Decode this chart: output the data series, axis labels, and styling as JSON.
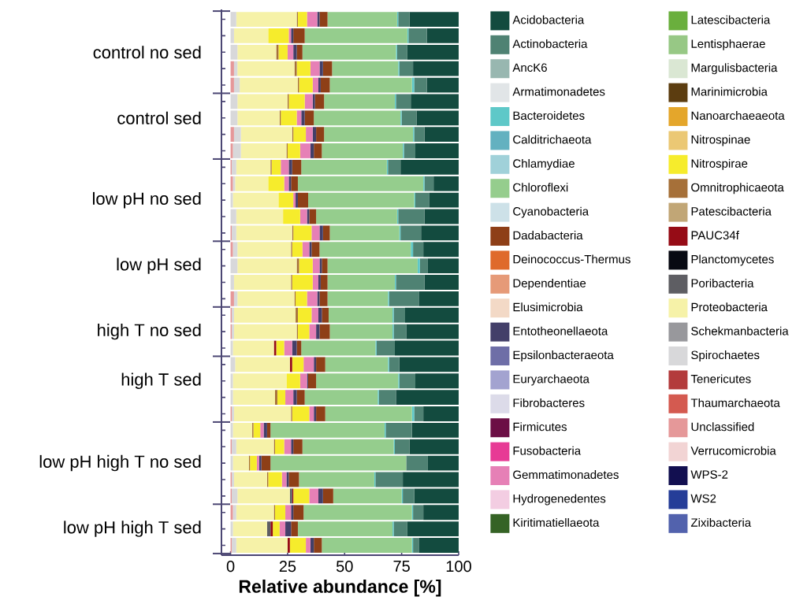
{
  "chart_data": {
    "type": "bar",
    "orientation": "horizontal",
    "stacked": true,
    "xlabel": "Relative abundance [%]",
    "xlim": [
      -4,
      100
    ],
    "xticks": [
      0,
      25,
      50,
      75,
      100
    ],
    "legend": "right",
    "categories": [
      null,
      null,
      "control no sed",
      null,
      null,
      null,
      "control sed",
      null,
      null,
      null,
      null,
      "low pH no sed",
      null,
      null,
      null,
      "low pH sed",
      null,
      null,
      null,
      "high T no sed",
      null,
      null,
      "high T sed",
      null,
      null,
      null,
      null,
      "low pH high T no sed",
      null,
      null,
      null,
      "low pH high T sed",
      null
    ],
    "series": [
      {
        "name": "Zixibacteria",
        "color": "#5262ad",
        "values": [
          0,
          0,
          0,
          0,
          0,
          0,
          0,
          0,
          0,
          0,
          0,
          0,
          0,
          0,
          0,
          0,
          0,
          0,
          0,
          0,
          0,
          0,
          0,
          0,
          0,
          0,
          0,
          0,
          0,
          0,
          0,
          0,
          0
        ]
      },
      {
        "name": "WS2",
        "color": "#253d98",
        "values": [
          0,
          0,
          0,
          0,
          0,
          0,
          0,
          0,
          0,
          0,
          0,
          0,
          0,
          0,
          0,
          0,
          0,
          0,
          0,
          0,
          0,
          0,
          0,
          0,
          0,
          0,
          0,
          0,
          0,
          0,
          0,
          0,
          0
        ]
      },
      {
        "name": "WPS-2",
        "color": "#120f50",
        "values": [
          0,
          0,
          0,
          0,
          0,
          0,
          0,
          0,
          0,
          0,
          0,
          0,
          0,
          0,
          0,
          0,
          0,
          0,
          0,
          0,
          0,
          0,
          0,
          0,
          0,
          0,
          0,
          0,
          0,
          0,
          0,
          0,
          0
        ]
      },
      {
        "name": "Verrucomicrobia",
        "color": "#f2d4d4",
        "values": [
          0,
          0,
          0,
          0,
          0,
          0,
          0,
          0,
          0,
          0,
          0,
          0,
          0,
          0,
          0,
          0,
          0,
          0,
          0,
          0,
          0,
          0,
          0,
          0,
          0,
          0,
          0,
          0,
          0,
          0,
          0,
          0,
          0
        ]
      },
      {
        "name": "Unclassified",
        "color": "#e59899",
        "values": [
          0,
          0,
          0,
          1.5,
          1.5,
          0,
          0,
          1.5,
          1,
          0.5,
          1,
          0,
          0,
          0.5,
          1,
          0,
          0,
          1.5,
          0.5,
          0.5,
          0,
          0,
          0,
          0,
          0.5,
          0,
          0.5,
          0,
          0.5,
          0.5,
          1,
          0,
          0.5
        ]
      },
      {
        "name": "Thaumarchaeota",
        "color": "#d45a50",
        "values": [
          0,
          0,
          0,
          0,
          0,
          0,
          0,
          0,
          0,
          0,
          0,
          0,
          0,
          0,
          0,
          0,
          0,
          0,
          0,
          0,
          0,
          0,
          0,
          0,
          0,
          0,
          0,
          0,
          0,
          0,
          0,
          0,
          0
        ]
      },
      {
        "name": "Tenericutes",
        "color": "#b33b3c",
        "values": [
          0,
          0,
          0,
          0,
          0,
          0,
          0,
          0,
          0,
          0,
          0,
          0,
          0,
          0,
          0,
          0,
          0,
          0,
          0,
          0,
          0,
          0,
          0,
          0,
          0,
          0,
          0,
          0,
          0,
          0,
          0,
          0,
          0
        ]
      },
      {
        "name": "Spirochaetes",
        "color": "#d8d8da",
        "values": [
          2.5,
          1.5,
          3,
          1.5,
          2.5,
          3,
          3,
          3,
          3.5,
          2,
          1,
          1,
          2.5,
          2,
          2,
          3,
          1.5,
          1.5,
          1,
          1,
          1,
          2,
          1,
          1,
          1,
          1,
          2,
          1,
          1,
          2.5,
          1.5,
          1,
          2
        ]
      },
      {
        "name": "Schekmanbacteria",
        "color": "#98989c",
        "values": [
          0,
          0,
          0,
          0,
          0,
          0,
          0,
          0,
          0,
          0,
          0,
          0,
          0,
          0,
          0,
          0,
          0,
          0,
          0,
          0,
          0,
          0,
          0,
          0,
          0,
          0,
          0,
          0,
          0,
          0,
          0,
          0,
          0
        ]
      },
      {
        "name": "Proteobacteria",
        "color": "#f6f2a8",
        "values": [
          26.5,
          15,
          17,
          25,
          25.5,
          22,
          18.5,
          22.5,
          20,
          15,
          14.5,
          20,
          20.5,
          24.5,
          23.5,
          26,
          25,
          25,
          27,
          27.5,
          18,
          24,
          23.5,
          18.5,
          25,
          8.5,
          16.5,
          7,
          14.5,
          23,
          16.5,
          15,
          22.5
        ]
      },
      {
        "name": "Poribacteria",
        "color": "#5e5e63",
        "values": [
          0,
          0,
          0,
          0,
          0,
          0,
          0,
          0,
          0,
          0,
          0,
          0,
          0,
          0,
          0,
          0,
          0,
          0,
          0,
          0,
          0,
          0,
          0,
          0,
          0,
          0,
          0,
          0,
          0,
          1,
          0,
          1.5,
          0
        ]
      },
      {
        "name": "Planctomycetes",
        "color": "#070912",
        "values": [
          0,
          0,
          0,
          0,
          0,
          0,
          0,
          0,
          0,
          0,
          0,
          0,
          0,
          0,
          0,
          0,
          0,
          0,
          0,
          0,
          0,
          0,
          0,
          0,
          0,
          0,
          0,
          0,
          0,
          0,
          0,
          0,
          0
        ]
      },
      {
        "name": "PAUC34f",
        "color": "#960c16",
        "values": [
          0,
          0,
          0,
          0,
          0,
          0,
          0,
          0,
          0,
          0,
          0,
          0,
          0,
          0,
          0,
          0,
          0,
          0,
          0,
          0,
          1,
          1,
          0,
          0,
          0,
          0,
          0,
          0,
          0,
          0.5,
          0,
          1,
          1
        ]
      },
      {
        "name": "Patescibacteria",
        "color": "#c1a676",
        "values": [
          0,
          0,
          0,
          0,
          0,
          0,
          0,
          0,
          0,
          0,
          0,
          0,
          0,
          0,
          0,
          0,
          0,
          0,
          0,
          0,
          0,
          0,
          0,
          0,
          0,
          0,
          0,
          0,
          0,
          0,
          0,
          0,
          0
        ]
      },
      {
        "name": "Omnitrophicaeota",
        "color": "#a67039",
        "values": [
          0.5,
          0,
          1,
          1,
          0.5,
          0.5,
          0.5,
          0.5,
          0.5,
          0.5,
          0,
          0,
          0,
          0.5,
          0.5,
          1,
          0.5,
          0.5,
          1,
          0.5,
          0,
          0,
          0,
          1,
          0.5,
          0.5,
          0.5,
          0.5,
          0.5,
          0,
          0.5,
          0,
          0
        ]
      },
      {
        "name": "Nitrospirae",
        "color": "#f6ec2c",
        "values": [
          4,
          9,
          4,
          6,
          6,
          7,
          7,
          5.5,
          5.5,
          4,
          7,
          6.5,
          7.5,
          8,
          4.5,
          6,
          9,
          5,
          6,
          5,
          3.5,
          5,
          6,
          3.5,
          7.5,
          3,
          4,
          3,
          6,
          7,
          4.5,
          3,
          7
        ]
      },
      {
        "name": "Nitrospinae",
        "color": "#ebc874",
        "values": [
          0,
          0,
          0,
          0,
          0,
          0,
          0,
          0,
          0,
          0,
          0,
          0,
          0,
          0,
          0,
          0,
          0,
          0,
          0,
          0,
          0,
          0,
          0,
          0,
          0,
          0,
          0,
          0,
          0,
          0,
          0,
          0,
          0
        ]
      },
      {
        "name": "Nanoarchaeaeota",
        "color": "#e4a62b",
        "values": [
          0,
          0,
          0,
          0,
          0,
          0,
          0,
          0,
          0,
          0,
          0,
          0,
          0,
          0,
          0,
          0,
          0,
          0,
          0,
          0,
          0,
          0,
          0,
          0,
          0,
          0,
          0,
          0,
          0,
          0,
          0,
          0,
          0
        ]
      },
      {
        "name": "Marinimicrobia",
        "color": "#5c3d10",
        "values": [
          0,
          0,
          0,
          0,
          0,
          0,
          0,
          0,
          0,
          0,
          0,
          0,
          0,
          0,
          0,
          0,
          0,
          0,
          0,
          0,
          0,
          0,
          0,
          0,
          0,
          0,
          0,
          0,
          0,
          0,
          0,
          0,
          0
        ]
      },
      {
        "name": "Margulisbacteria",
        "color": "#dae7d3",
        "values": [
          0,
          0,
          0,
          0,
          0,
          0,
          0,
          0,
          0,
          0,
          0,
          0,
          0,
          0,
          0,
          0,
          0,
          0,
          0,
          0,
          0,
          0,
          0,
          0,
          0,
          0,
          0,
          0,
          0,
          0,
          0,
          0,
          0
        ]
      },
      {
        "name": "Lentisphaerae",
        "color": "#97c885",
        "values": [
          0,
          0,
          0,
          0,
          0,
          0,
          0,
          0,
          0,
          0,
          0,
          0,
          0,
          0,
          0,
          0,
          0,
          0,
          0,
          0,
          0,
          0,
          0,
          0,
          0,
          0,
          0,
          0,
          0,
          0,
          0,
          0,
          0
        ]
      },
      {
        "name": "Latescibacteria",
        "color": "#6aaf3d",
        "values": [
          0,
          0,
          0,
          0,
          0,
          0,
          0,
          0,
          0,
          0,
          0,
          0,
          0,
          0,
          0,
          0,
          0,
          0,
          0,
          0,
          0,
          0,
          0,
          0,
          0,
          0,
          0,
          0,
          0,
          0,
          0,
          0,
          0
        ]
      },
      {
        "name": "Kiritimatiellaeota",
        "color": "#356325",
        "values": [
          0,
          0,
          0,
          0,
          0,
          0,
          0,
          0,
          0,
          0,
          0,
          0,
          0,
          0,
          0,
          0,
          0,
          0,
          0,
          0,
          0,
          0,
          0,
          0,
          0,
          0,
          0,
          0,
          0,
          0,
          0,
          0,
          0
        ]
      },
      {
        "name": "Hydrogenedentes",
        "color": "#f3cde2",
        "values": [
          0,
          0,
          0,
          0,
          0,
          0,
          0,
          0,
          0,
          0,
          0,
          0,
          0,
          0,
          0,
          0,
          0,
          0,
          0,
          0,
          0,
          0,
          0,
          0,
          0,
          0,
          0,
          0,
          0,
          0,
          0,
          0,
          0
        ]
      },
      {
        "name": "Gemmatimonadetes",
        "color": "#e680b6",
        "values": [
          4.5,
          1,
          2.5,
          4,
          2.5,
          3.5,
          2,
          3,
          4.5,
          3.5,
          2,
          1,
          3,
          3.5,
          3,
          3,
          2.5,
          4.5,
          3,
          3,
          3.5,
          4.5,
          3,
          3.5,
          2,
          1.5,
          3,
          1,
          2,
          4,
          2.5,
          2.5,
          2
        ]
      },
      {
        "name": "Fusobacteria",
        "color": "#e73a95",
        "values": [
          0,
          0,
          0,
          0,
          0,
          0,
          0,
          0,
          0,
          0,
          0,
          0,
          0,
          0,
          0,
          0,
          0,
          0,
          0,
          0,
          0,
          0,
          0,
          0,
          0,
          0,
          0,
          0,
          0,
          0,
          0,
          0,
          0
        ]
      },
      {
        "name": "Firmicutes",
        "color": "#6c0f45",
        "values": [
          0,
          0,
          0,
          0,
          0,
          0,
          0,
          0,
          0,
          0,
          0,
          0,
          0,
          0,
          0,
          0,
          0,
          0,
          0,
          0,
          0,
          0,
          0,
          0,
          0,
          0,
          0,
          0,
          0,
          0,
          0,
          0,
          0
        ]
      },
      {
        "name": "Fibrobacteres",
        "color": "#dcdbe9",
        "values": [
          0,
          0,
          0,
          0,
          0,
          0,
          0,
          0,
          0,
          0,
          0,
          0,
          0,
          0,
          0,
          0,
          0,
          0,
          0,
          0,
          0,
          0,
          0,
          0,
          0,
          0,
          0,
          0,
          0,
          0,
          0,
          0,
          0
        ]
      },
      {
        "name": "Euryarchaeota",
        "color": "#a3a3d0",
        "values": [
          0,
          0,
          0,
          0,
          0,
          0,
          0,
          0,
          0,
          0,
          0,
          0,
          0,
          0,
          0,
          0,
          0,
          0,
          0,
          0,
          0,
          0,
          0,
          0,
          0,
          0,
          0,
          0,
          0,
          0,
          0,
          0,
          0
        ]
      },
      {
        "name": "Epsilonbacteraeota",
        "color": "#6e6ea7",
        "values": [
          0,
          0,
          0,
          0,
          0,
          0,
          0,
          0,
          0,
          0,
          0,
          0,
          0,
          0,
          0,
          0,
          0,
          0,
          0,
          0,
          0,
          0,
          0,
          0,
          0,
          0,
          0,
          0,
          0,
          0,
          0,
          0,
          0
        ]
      },
      {
        "name": "Entotheonellaeota",
        "color": "#433f69",
        "values": [
          1,
          1,
          1.5,
          1.5,
          1,
          1,
          1.5,
          1.5,
          1.5,
          1.5,
          1,
          1,
          1,
          1.5,
          1,
          1,
          1,
          1,
          1.5,
          1.5,
          2,
          1,
          0.5,
          1.5,
          1,
          1.5,
          1,
          1,
          1,
          2,
          1,
          2.5,
          1.5
        ]
      },
      {
        "name": "Elusimicrobia",
        "color": "#f3d9c6",
        "values": [
          0,
          0,
          0,
          0,
          0,
          0,
          0,
          0,
          0,
          0,
          0,
          0,
          0,
          0,
          0,
          0,
          0,
          0,
          0,
          0,
          0,
          0,
          0,
          0,
          0,
          0,
          0,
          0,
          0,
          0,
          0,
          0,
          0
        ]
      },
      {
        "name": "Dependentiae",
        "color": "#e69a78",
        "values": [
          0,
          0,
          0,
          0,
          0,
          0,
          0,
          0,
          0,
          0,
          0,
          0,
          0,
          0,
          0,
          0,
          0,
          0,
          0,
          0,
          0,
          0,
          0,
          0,
          0,
          0,
          0,
          0,
          0,
          0,
          0,
          0,
          0
        ]
      },
      {
        "name": "Deinococcus-Thermus",
        "color": "#df6a2b",
        "values": [
          0,
          0,
          0,
          0,
          0,
          0,
          0,
          0,
          0,
          0,
          0,
          0,
          0,
          0,
          0,
          0,
          0,
          0,
          0,
          0,
          0,
          0,
          0,
          0,
          0,
          0,
          0,
          0,
          0,
          0,
          0,
          0,
          0
        ]
      },
      {
        "name": "Dadabacteria",
        "color": "#8e3f17",
        "values": [
          3.5,
          5,
          2.5,
          4,
          4,
          4,
          4,
          3.5,
          3.5,
          4,
          3,
          4.5,
          3,
          3,
          3.5,
          2.5,
          3,
          3.5,
          3,
          4.5,
          2,
          4,
          3.5,
          3.5,
          4,
          1.5,
          4,
          4,
          4.5,
          4.5,
          4.5,
          3,
          3.5
        ]
      },
      {
        "name": "Cyanobacteria",
        "color": "#cde1e8",
        "values": [
          0,
          0,
          0,
          0,
          0,
          0,
          0,
          0,
          0,
          0,
          0,
          0,
          0,
          0,
          0,
          0,
          0,
          0,
          0,
          0,
          0,
          0,
          0,
          0,
          0,
          0,
          0,
          0,
          0,
          0,
          0,
          0,
          0
        ]
      },
      {
        "name": "Chloroflexi",
        "color": "#95cd8d",
        "values": [
          30.5,
          45,
          41,
          29,
          36,
          31,
          38,
          39,
          35.5,
          37.5,
          55,
          46.5,
          35.5,
          30.5,
          40,
          39.5,
          29.5,
          26.5,
          28,
          27.5,
          32.5,
          27.5,
          36,
          32,
          38,
          50,
          40,
          59.5,
          33,
          30,
          47.5,
          41.5,
          39.5
        ]
      },
      {
        "name": "Chlamydiae",
        "color": "#a0d1d9",
        "values": [
          0,
          0,
          0,
          0,
          0,
          0,
          0,
          0,
          0,
          0,
          0,
          0,
          0,
          0,
          0,
          0,
          0,
          0,
          0,
          0,
          0,
          0,
          0,
          0,
          0,
          0,
          0,
          0,
          0,
          0,
          0,
          0,
          0
        ]
      },
      {
        "name": "Calditrichaeota",
        "color": "#63b1c0",
        "values": [
          0,
          0,
          0,
          0,
          0,
          0,
          0,
          0,
          0,
          0,
          0,
          0,
          0,
          0,
          0,
          0,
          0,
          0,
          0,
          0,
          0,
          0,
          0,
          0,
          0,
          0,
          0,
          0,
          0,
          0,
          0,
          0,
          0
        ]
      },
      {
        "name": "Bacteroidetes",
        "color": "#5ec8c8",
        "values": [
          0.5,
          0.5,
          0.5,
          0.5,
          1,
          0.5,
          0.5,
          0.5,
          0.5,
          0.5,
          0.5,
          0.5,
          0.5,
          0.5,
          1,
          1,
          0.5,
          0.5,
          0.5,
          0.5,
          0.5,
          0.5,
          0.5,
          0.5,
          1,
          0.5,
          0.5,
          0,
          0.5,
          0.5,
          0.5,
          0.5,
          0.5
        ]
      },
      {
        "name": "Armatimonadetes",
        "color": "#e1e5e7",
        "values": [
          0,
          0,
          0,
          0,
          0,
          0,
          0,
          0,
          0,
          0,
          0,
          0,
          0,
          0,
          0,
          0,
          0,
          0,
          0,
          0,
          0,
          0,
          0,
          0,
          0,
          0,
          0,
          0,
          0,
          0,
          0,
          0,
          0
        ]
      },
      {
        "name": "AncK6",
        "color": "#98b7b0",
        "values": [
          0,
          0,
          0,
          0,
          0,
          0,
          0,
          0,
          0,
          0,
          0,
          0,
          0,
          0,
          0,
          0,
          0,
          0,
          0,
          0,
          0,
          0,
          0,
          0,
          0,
          0,
          0,
          0,
          0,
          0,
          0,
          0,
          0
        ]
      },
      {
        "name": "Actinobacteria",
        "color": "#4f8273",
        "values": [
          5,
          8,
          4.5,
          6,
          5.5,
          6.5,
          6.5,
          4.5,
          5,
          5.5,
          4,
          6,
          11.5,
          9,
          4.5,
          3.5,
          12.5,
          13,
          5,
          5.5,
          8,
          4.5,
          7,
          7.5,
          4,
          11.5,
          6.5,
          9.5,
          12,
          5,
          4.5,
          6,
          2.5
        ]
      },
      {
        "name": "Acidobacteria",
        "color": "#134b3f",
        "values": [
          21.5,
          14,
          22.5,
          20,
          14,
          21,
          18.5,
          15,
          19,
          25.5,
          11,
          13,
          15,
          16.5,
          15.5,
          13.5,
          15,
          17.5,
          23.5,
          23,
          28,
          26,
          19,
          27.5,
          15.5,
          20.5,
          21.5,
          13.5,
          24.5,
          19.5,
          15.5,
          22.5,
          17.5
        ]
      }
    ]
  }
}
